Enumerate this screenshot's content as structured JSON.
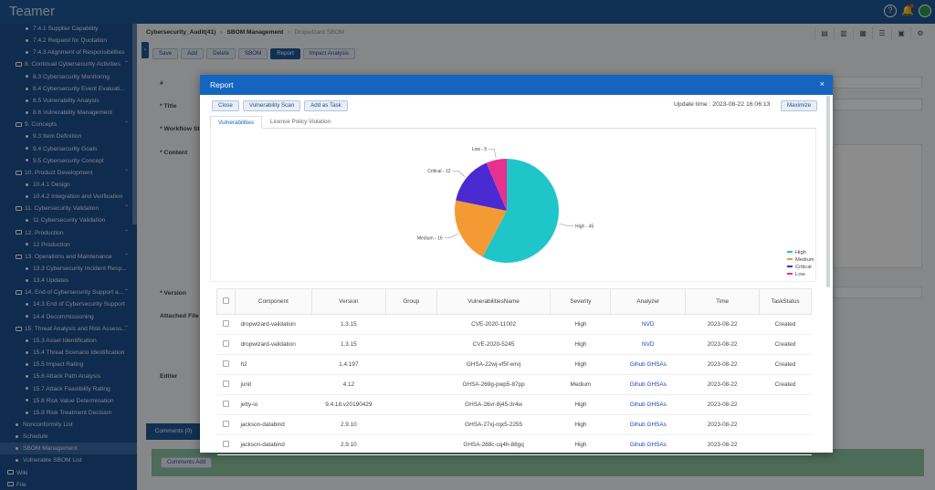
{
  "app": {
    "brand": "Teamer"
  },
  "top_icons": [
    "help-icon",
    "bell-icon",
    "avatar-icon"
  ],
  "sidebar": {
    "items": [
      {
        "label": "7.4.1 Supplier Capability",
        "level": 2
      },
      {
        "label": "7.4.2 Request for Quotation",
        "level": 2
      },
      {
        "label": "7.4.3 Alignment of Responsibilities",
        "level": 2
      },
      {
        "label": "8. Continual Cybersecurity Activities",
        "level": 1
      },
      {
        "label": "8.3 Cybersecurity Monitoring",
        "level": 2
      },
      {
        "label": "8.4 Cybersecurity Event Evaluati...",
        "level": 2
      },
      {
        "label": "8.5 Vulnerability Analysis",
        "level": 2
      },
      {
        "label": "8.6 Vulnerability Management",
        "level": 2
      },
      {
        "label": "9. Concepts",
        "level": 1
      },
      {
        "label": "9.3 Item Definition",
        "level": 2
      },
      {
        "label": "9.4 Cybersecurity Goals",
        "level": 2
      },
      {
        "label": "9.5 Cybersecurity Concept",
        "level": 2
      },
      {
        "label": "10. Product Development",
        "level": 1
      },
      {
        "label": "10.4.1 Design",
        "level": 2
      },
      {
        "label": "10.4.2 Integration and Verification",
        "level": 2
      },
      {
        "label": "11. Cybersecurity Validation",
        "level": 1
      },
      {
        "label": "11 Cybersecurity Validation",
        "level": 2
      },
      {
        "label": "12. Production",
        "level": 1
      },
      {
        "label": "12 Production",
        "level": 2
      },
      {
        "label": "13. Operations and Maintenance",
        "level": 1
      },
      {
        "label": "13.3 Cybersecurity Incident Resp...",
        "level": 2
      },
      {
        "label": "13.4 Updates",
        "level": 2
      },
      {
        "label": "14. End of Cybersecurity Support a...",
        "level": 1
      },
      {
        "label": "14.3 End of Cybersecurity Support",
        "level": 2
      },
      {
        "label": "14.4 Decommissioning",
        "level": 2
      },
      {
        "label": "15. Threat Analysis and Risk Assess...",
        "level": 1
      },
      {
        "label": "15.3 Asset Identification",
        "level": 2
      },
      {
        "label": "15.4 Threat Scenario Identification",
        "level": 2
      },
      {
        "label": "15.5 Impact Rating",
        "level": 2
      },
      {
        "label": "15.6 Attack Path Analysis",
        "level": 2
      },
      {
        "label": "15.7 Attack Feasibility Rating",
        "level": 2
      },
      {
        "label": "15.8 Risk Value Determination",
        "level": 2
      },
      {
        "label": "15.9 Risk Treatment Decision",
        "level": 2
      },
      {
        "label": "Nonconformity List",
        "level": 0
      },
      {
        "label": "Schedule",
        "level": 0
      },
      {
        "label": "SBOM Management",
        "level": 0,
        "active": true
      },
      {
        "label": "Vulnerable SBOM List",
        "level": 0
      },
      {
        "label": "Wiki",
        "level": -1
      },
      {
        "label": "File",
        "level": -1
      }
    ]
  },
  "breadcrumb": {
    "part1": "Cybersecurity_Audit(41)",
    "part2": "SBOM Management",
    "current": "Dropwizard SBOM"
  },
  "toolbar": {
    "save": "Save",
    "add": "Add",
    "delete": "Delete",
    "sbom": "SBOM",
    "report": "Report",
    "impact": "Impact Analysis"
  },
  "form": {
    "no": "#",
    "title": "* Title",
    "workflow": "* Workflow St",
    "content": "* Content",
    "version": "* Version",
    "attached": "Attached File",
    "editor": "Editer"
  },
  "comments": {
    "tab": "Comments (0)",
    "add": "Comments Add"
  },
  "modal": {
    "title": "Report",
    "close_x": "×",
    "close": "Close",
    "scan": "Vulnerability Scan",
    "add_task": "Add as Task",
    "update_time": "Update time : 2023-08-22 16:06:13",
    "maximize": "Maximize",
    "tab_vuln": "Vulnerabilities",
    "tab_license": "License Policy Violation"
  },
  "chart_data": {
    "type": "pie",
    "labels": [
      "High",
      "Medium",
      "Critical",
      "Low"
    ],
    "values": [
      45,
      16,
      12,
      5
    ],
    "colors": [
      "#1fc6c9",
      "#f39a34",
      "#4a2ad1",
      "#e8318f"
    ],
    "slice_labels": [
      "High - 45",
      "Medium - 16",
      "Critical - 12",
      "Low - 5"
    ],
    "legend_position": "right"
  },
  "table": {
    "headers": [
      "Component",
      "Version",
      "Group",
      "VulnerabilitiesName",
      "Severity",
      "Analyzer",
      "Time",
      "TaskStatus"
    ],
    "rows": [
      [
        "dropwizard-validation",
        "1.3.15",
        "",
        "CVE-2020-11002",
        "High",
        "NVD",
        "2023-08-22",
        "Created"
      ],
      [
        "dropwizard-validation",
        "1.3.15",
        "",
        "CVE-2020-5245",
        "High",
        "NVD",
        "2023-08-22",
        "Created"
      ],
      [
        "h2",
        "1.4.197",
        "",
        "GHSA-22wj-vf5f-wrvj",
        "High",
        "Gihub GHSAs",
        "2023-08-22",
        "Created"
      ],
      [
        "junit",
        "4.12",
        "",
        "GHSA-269g-pwp5-87pp",
        "Medium",
        "Gihub GHSAs",
        "2023-08-22",
        "Created"
      ],
      [
        "jetty-io",
        "9.4.18.v20190429",
        "",
        "GHSA-26vr-8j45-3r4w",
        "High",
        "Gihub GHSAs",
        "2023-08-22",
        ""
      ],
      [
        "jackson-databind",
        "2.9.10",
        "",
        "GHSA-27xj-rqx5-2255",
        "High",
        "Gihub GHSAs",
        "2023-08-22",
        ""
      ],
      [
        "jackson-databind",
        "2.9.10",
        "",
        "GHSA-288c-cq4h-88gq",
        "High",
        "Gihub GHSAs",
        "2023-08-22",
        ""
      ]
    ]
  }
}
